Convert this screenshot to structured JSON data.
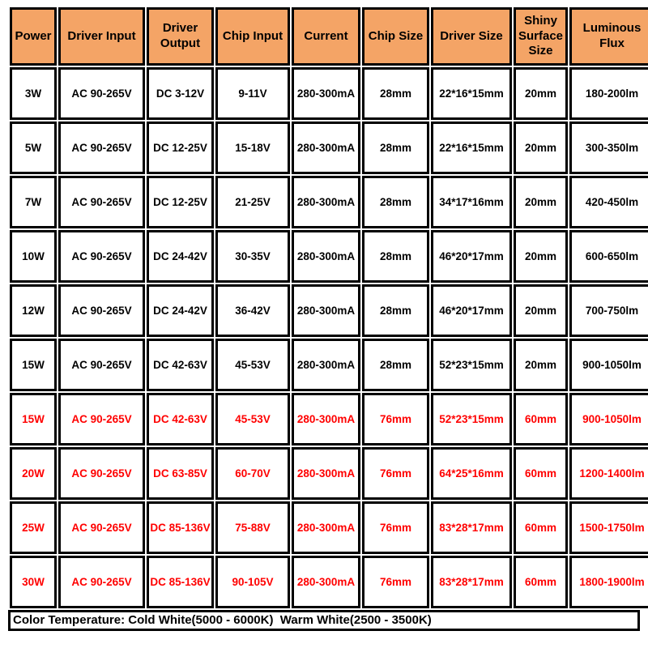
{
  "colors": {
    "header_bg": "#F4A466",
    "border": "#000000",
    "black": "#000000",
    "red": "#FF0000"
  },
  "table": {
    "columns": [
      "Power",
      "Driver Input",
      "Driver Output",
      "Chip Input",
      "Current",
      "Chip Size",
      "Driver Size",
      "Shiny Surface Size",
      "Luminous Flux"
    ],
    "rows": [
      {
        "style": "black",
        "cells": [
          "3W",
          "AC 90-265V",
          "DC 3-12V",
          "9-11V",
          "280-300mA",
          "28mm",
          "22*16*15mm",
          "20mm",
          "180-200lm"
        ]
      },
      {
        "style": "black",
        "cells": [
          "5W",
          "AC 90-265V",
          "DC 12-25V",
          "15-18V",
          "280-300mA",
          "28mm",
          "22*16*15mm",
          "20mm",
          "300-350lm"
        ]
      },
      {
        "style": "black",
        "cells": [
          "7W",
          "AC 90-265V",
          "DC 12-25V",
          "21-25V",
          "280-300mA",
          "28mm",
          "34*17*16mm",
          "20mm",
          "420-450lm"
        ]
      },
      {
        "style": "black",
        "cells": [
          "10W",
          "AC 90-265V",
          "DC 24-42V",
          "30-35V",
          "280-300mA",
          "28mm",
          "46*20*17mm",
          "20mm",
          "600-650lm"
        ]
      },
      {
        "style": "black",
        "cells": [
          "12W",
          "AC 90-265V",
          "DC 24-42V",
          "36-42V",
          "280-300mA",
          "28mm",
          "46*20*17mm",
          "20mm",
          "700-750lm"
        ]
      },
      {
        "style": "black",
        "cells": [
          "15W",
          "AC 90-265V",
          "DC 42-63V",
          "45-53V",
          "280-300mA",
          "28mm",
          "52*23*15mm",
          "20mm",
          "900-1050lm"
        ]
      },
      {
        "style": "red",
        "cells": [
          "15W",
          "AC 90-265V",
          "DC 42-63V",
          "45-53V",
          "280-300mA",
          "76mm",
          "52*23*15mm",
          "60mm",
          "900-1050lm"
        ]
      },
      {
        "style": "red",
        "cells": [
          "20W",
          "AC 90-265V",
          "DC 63-85V",
          "60-70V",
          "280-300mA",
          "76mm",
          "64*25*16mm",
          "60mm",
          "1200-1400lm"
        ]
      },
      {
        "style": "red",
        "cells": [
          "25W",
          "AC 90-265V",
          "DC 85-136V",
          "75-88V",
          "280-300mA",
          "76mm",
          "83*28*17mm",
          "60mm",
          "1500-1750lm"
        ]
      },
      {
        "style": "red",
        "cells": [
          "30W",
          "AC 90-265V",
          "DC 85-136V",
          "90-105V",
          "280-300mA",
          "76mm",
          "83*28*17mm",
          "60mm",
          "1800-1900lm"
        ]
      }
    ]
  },
  "footer": {
    "text": "Color Temperature: Cold White(5000 - 6000K)  Warm White(2500 - 3500K)"
  }
}
